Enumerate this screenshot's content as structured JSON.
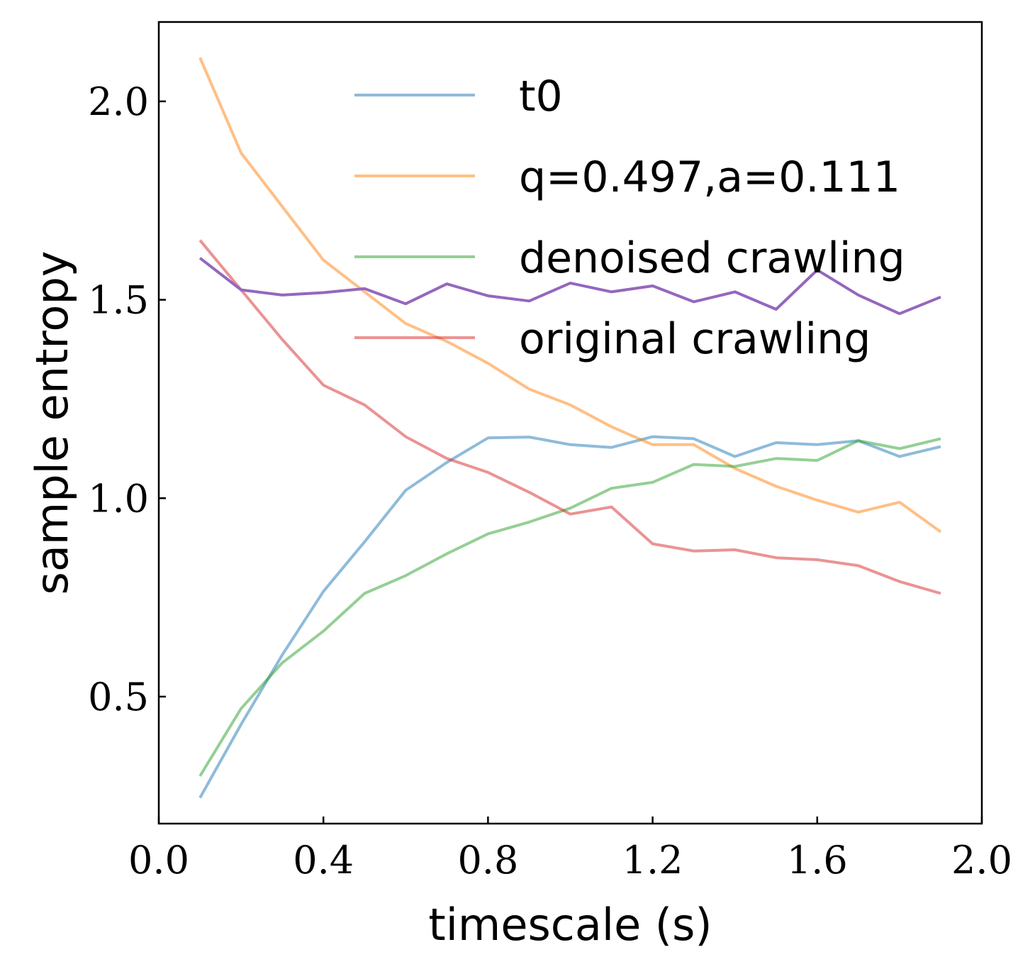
{
  "chart_data": {
    "type": "line",
    "xlabel": "timescale (s)",
    "ylabel": "sample entropy",
    "xlim": [
      0.0,
      2.0
    ],
    "ylim": [
      0.18,
      2.2
    ],
    "xticks": [
      "0.0",
      "0.4",
      "0.8",
      "1.2",
      "1.6",
      "2.0"
    ],
    "yticks": [
      "0.5",
      "1.0",
      "1.5",
      "2.0"
    ],
    "legend_position": "top-right",
    "x": [
      0.1,
      0.2,
      0.3,
      0.4,
      0.5,
      0.6,
      0.7,
      0.8,
      0.9,
      1.0,
      1.1,
      1.2,
      1.3,
      1.4,
      1.5,
      1.6,
      1.7,
      1.8,
      1.9
    ],
    "series": [
      {
        "name": "t0",
        "color": "#1f77b4",
        "opacity": 0.5,
        "in_legend": true,
        "values": [
          0.245,
          0.43,
          0.605,
          0.765,
          0.89,
          1.02,
          1.09,
          1.152,
          1.154,
          1.135,
          1.128,
          1.155,
          1.15,
          1.105,
          1.14,
          1.135,
          1.145,
          1.105,
          1.13
        ]
      },
      {
        "name": "q=0.497,a=0.111",
        "color": "#ff7f0e",
        "opacity": 0.5,
        "in_legend": true,
        "values": [
          2.11,
          1.87,
          1.735,
          1.6,
          1.52,
          1.44,
          1.395,
          1.34,
          1.275,
          1.235,
          1.18,
          1.135,
          1.135,
          1.075,
          1.03,
          0.995,
          0.965,
          0.99,
          0.915
        ]
      },
      {
        "name": "denoised crawling",
        "color": "#2ca02c",
        "opacity": 0.5,
        "in_legend": true,
        "values": [
          0.3,
          0.47,
          0.585,
          0.665,
          0.76,
          0.805,
          0.86,
          0.91,
          0.94,
          0.975,
          1.025,
          1.04,
          1.085,
          1.08,
          1.1,
          1.095,
          1.145,
          1.125,
          1.15
        ]
      },
      {
        "name": "original crawling",
        "color": "#d62728",
        "opacity": 0.5,
        "in_legend": true,
        "values": [
          1.65,
          1.525,
          1.4,
          1.285,
          1.235,
          1.155,
          1.1,
          1.065,
          1.015,
          0.96,
          0.978,
          0.885,
          0.867,
          0.87,
          0.85,
          0.845,
          0.83,
          0.79,
          0.76
        ]
      },
      {
        "name": "",
        "color": "#9467bd",
        "opacity": 1.0,
        "in_legend": false,
        "values": [
          1.605,
          1.525,
          1.512,
          1.518,
          1.528,
          1.49,
          1.54,
          1.51,
          1.497,
          1.542,
          1.52,
          1.535,
          1.495,
          1.52,
          1.476,
          1.575,
          1.512,
          1.465,
          1.507
        ]
      }
    ]
  }
}
